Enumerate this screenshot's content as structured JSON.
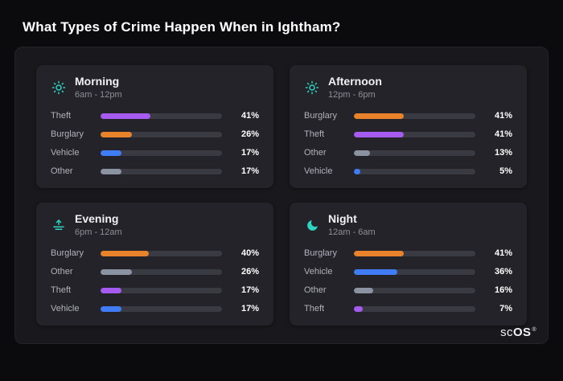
{
  "title": "What Types of Crime Happen When in Ightham?",
  "brand": {
    "part1": "sc",
    "part2": "OS",
    "registered": "®"
  },
  "colors": {
    "accent_teal": "#2dd4bf",
    "bar_theft": "#a55bf0",
    "bar_burglary": "#e8832c",
    "bar_vehicle": "#3f7cf5",
    "bar_other": "#8b93a3",
    "track": "#3a3a43",
    "card_bg": "#232329",
    "panel_bg": "#19191d",
    "page_bg": "#0b0b0e"
  },
  "cards": [
    {
      "title": "Morning",
      "time_range": "6am - 12pm",
      "icon": "sun-icon",
      "rows": [
        {
          "label": "Theft",
          "value": 41,
          "pct": "41%",
          "color": "#a55bf0"
        },
        {
          "label": "Burglary",
          "value": 26,
          "pct": "26%",
          "color": "#e8832c"
        },
        {
          "label": "Vehicle",
          "value": 17,
          "pct": "17%",
          "color": "#3f7cf5"
        },
        {
          "label": "Other",
          "value": 17,
          "pct": "17%",
          "color": "#8b93a3"
        }
      ]
    },
    {
      "title": "Afternoon",
      "time_range": "12pm - 6pm",
      "icon": "sun-icon",
      "rows": [
        {
          "label": "Burglary",
          "value": 41,
          "pct": "41%",
          "color": "#e8832c"
        },
        {
          "label": "Theft",
          "value": 41,
          "pct": "41%",
          "color": "#a55bf0"
        },
        {
          "label": "Other",
          "value": 13,
          "pct": "13%",
          "color": "#8b93a3"
        },
        {
          "label": "Vehicle",
          "value": 5,
          "pct": "5%",
          "color": "#3f7cf5"
        }
      ]
    },
    {
      "title": "Evening",
      "time_range": "6pm - 12am",
      "icon": "sunset-icon",
      "rows": [
        {
          "label": "Burglary",
          "value": 40,
          "pct": "40%",
          "color": "#e8832c"
        },
        {
          "label": "Other",
          "value": 26,
          "pct": "26%",
          "color": "#8b93a3"
        },
        {
          "label": "Theft",
          "value": 17,
          "pct": "17%",
          "color": "#a55bf0"
        },
        {
          "label": "Vehicle",
          "value": 17,
          "pct": "17%",
          "color": "#3f7cf5"
        }
      ]
    },
    {
      "title": "Night",
      "time_range": "12am - 6am",
      "icon": "moon-icon",
      "rows": [
        {
          "label": "Burglary",
          "value": 41,
          "pct": "41%",
          "color": "#e8832c"
        },
        {
          "label": "Vehicle",
          "value": 36,
          "pct": "36%",
          "color": "#3f7cf5"
        },
        {
          "label": "Other",
          "value": 16,
          "pct": "16%",
          "color": "#8b93a3"
        },
        {
          "label": "Theft",
          "value": 7,
          "pct": "7%",
          "color": "#a55bf0"
        }
      ]
    }
  ],
  "chart_data": [
    {
      "type": "bar",
      "title": "Morning",
      "subtitle": "6am - 12pm",
      "categories": [
        "Theft",
        "Burglary",
        "Vehicle",
        "Other"
      ],
      "values": [
        41,
        26,
        17,
        17
      ],
      "value_suffix": "%",
      "xlim": [
        0,
        100
      ],
      "orientation": "horizontal",
      "legend": false,
      "grid": false
    },
    {
      "type": "bar",
      "title": "Afternoon",
      "subtitle": "12pm - 6pm",
      "categories": [
        "Burglary",
        "Theft",
        "Other",
        "Vehicle"
      ],
      "values": [
        41,
        41,
        13,
        5
      ],
      "value_suffix": "%",
      "xlim": [
        0,
        100
      ],
      "orientation": "horizontal",
      "legend": false,
      "grid": false
    },
    {
      "type": "bar",
      "title": "Evening",
      "subtitle": "6pm - 12am",
      "categories": [
        "Burglary",
        "Other",
        "Theft",
        "Vehicle"
      ],
      "values": [
        40,
        26,
        17,
        17
      ],
      "value_suffix": "%",
      "xlim": [
        0,
        100
      ],
      "orientation": "horizontal",
      "legend": false,
      "grid": false
    },
    {
      "type": "bar",
      "title": "Night",
      "subtitle": "12am - 6am",
      "categories": [
        "Burglary",
        "Vehicle",
        "Other",
        "Theft"
      ],
      "values": [
        41,
        36,
        16,
        7
      ],
      "value_suffix": "%",
      "xlim": [
        0,
        100
      ],
      "orientation": "horizontal",
      "legend": false,
      "grid": false
    }
  ]
}
